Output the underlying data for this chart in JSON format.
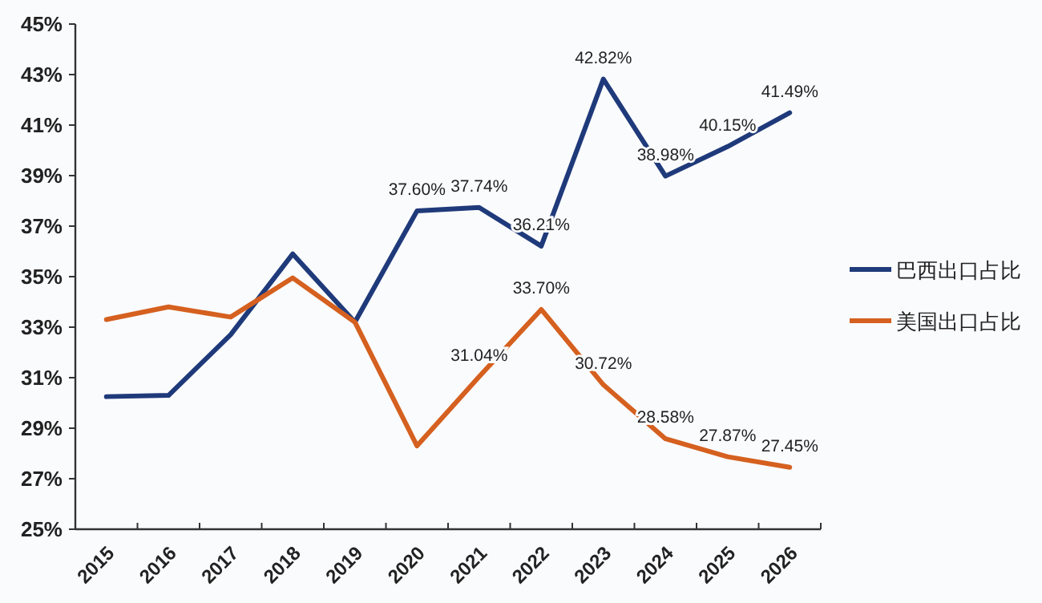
{
  "chart_data": {
    "type": "line",
    "categories": [
      "2015",
      "2016",
      "2017",
      "2018",
      "2019",
      "2020",
      "2021",
      "2022",
      "2023",
      "2024",
      "2025",
      "2026"
    ],
    "series": [
      {
        "name": "巴西出口占比",
        "color": "#1f3a7a",
        "values": [
          30.25,
          30.3,
          32.7,
          35.9,
          33.2,
          37.6,
          37.74,
          36.21,
          42.82,
          38.98,
          40.15,
          41.49
        ],
        "value_labels": [
          null,
          null,
          null,
          null,
          null,
          "37.60%",
          "37.74%",
          "36.21%",
          "42.82%",
          "38.98%",
          "40.15%",
          "41.49%"
        ]
      },
      {
        "name": "美国出口占比",
        "color": "#d5601f",
        "values": [
          33.3,
          33.8,
          33.4,
          34.95,
          33.2,
          28.3,
          31.04,
          33.7,
          30.72,
          28.58,
          27.87,
          27.45
        ],
        "value_labels": [
          null,
          null,
          null,
          null,
          null,
          null,
          "31.04%",
          "33.70%",
          "30.72%",
          "28.58%",
          "27.87%",
          "27.45%"
        ]
      }
    ],
    "ylim": [
      25,
      45
    ],
    "yticks": [
      {
        "value": 25,
        "label": "25%"
      },
      {
        "value": 27,
        "label": "27%"
      },
      {
        "value": 29,
        "label": "29%"
      },
      {
        "value": 31,
        "label": "31%"
      },
      {
        "value": 33,
        "label": "33%"
      },
      {
        "value": 35,
        "label": "35%"
      },
      {
        "value": 37,
        "label": "37%"
      },
      {
        "value": 39,
        "label": "39%"
      },
      {
        "value": 41,
        "label": "41%"
      },
      {
        "value": 43,
        "label": "43%"
      },
      {
        "value": 45,
        "label": "45%"
      }
    ],
    "grid": false,
    "legend": "right",
    "marker": "none",
    "line_style": "solid"
  }
}
